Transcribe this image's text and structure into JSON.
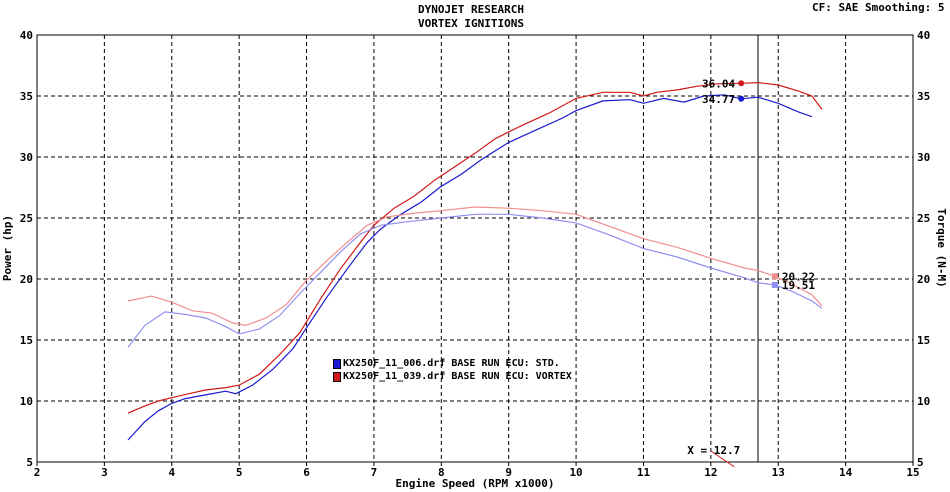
{
  "header": {
    "title_line1": "DYNOJET RESEARCH",
    "title_line2": "VORTEX IGNITIONS",
    "settings": "CF: SAE  Smoothing: 5"
  },
  "legend": [
    {
      "label": "KX250F_11_006.drf BASE RUN ECU: STD.",
      "color": "#1a1ad0"
    },
    {
      "label": "KX250F_11_039.drf BASE RUN ECU: VORTEX",
      "color": "#d01a1a"
    }
  ],
  "cursor": {
    "label": "X = 12.7",
    "x": 12.7
  },
  "chart_data": {
    "type": "line",
    "xlabel": "Engine Speed (RPM x1000)",
    "ylabel_left": "Power (hp)",
    "ylabel_right": "Torque (N-M)",
    "xlim": [
      2,
      15
    ],
    "ylim": [
      5,
      40
    ],
    "xticks": [
      2,
      3,
      4,
      5,
      6,
      7,
      8,
      9,
      10,
      11,
      12,
      13,
      14,
      15
    ],
    "yticks": [
      5,
      10,
      15,
      20,
      25,
      30,
      35,
      40
    ],
    "grid": true,
    "colors": {
      "std_power": "#1a1ad0",
      "vortex_power": "#d01a1a",
      "std_torque": "#8f8ff0",
      "vortex_torque": "#f08f8f"
    },
    "series": [
      {
        "name": "KX250F_11_006.drf BASE RUN ECU: STD.",
        "measure": "power",
        "color_key": "std_power",
        "points": [
          [
            3.35,
            6.8
          ],
          [
            3.6,
            8.3
          ],
          [
            3.8,
            9.2
          ],
          [
            4.0,
            9.8
          ],
          [
            4.2,
            10.2
          ],
          [
            4.5,
            10.5
          ],
          [
            4.8,
            10.8
          ],
          [
            4.95,
            10.6
          ],
          [
            5.2,
            11.3
          ],
          [
            5.5,
            12.6
          ],
          [
            5.8,
            14.3
          ],
          [
            6.0,
            16.0
          ],
          [
            6.3,
            18.5
          ],
          [
            6.6,
            20.8
          ],
          [
            6.9,
            23.0
          ],
          [
            7.1,
            24.1
          ],
          [
            7.4,
            25.3
          ],
          [
            7.7,
            26.3
          ],
          [
            8.0,
            27.6
          ],
          [
            8.3,
            28.6
          ],
          [
            8.6,
            29.8
          ],
          [
            9.0,
            31.2
          ],
          [
            9.4,
            32.2
          ],
          [
            9.8,
            33.2
          ],
          [
            10.0,
            33.8
          ],
          [
            10.4,
            34.6
          ],
          [
            10.8,
            34.7
          ],
          [
            11.0,
            34.4
          ],
          [
            11.3,
            34.8
          ],
          [
            11.6,
            34.5
          ],
          [
            11.9,
            35.0
          ],
          [
            12.2,
            35.1
          ],
          [
            12.45,
            34.77
          ],
          [
            12.7,
            34.9
          ],
          [
            13.0,
            34.4
          ],
          [
            13.3,
            33.7
          ],
          [
            13.5,
            33.3
          ]
        ]
      },
      {
        "name": "KX250F_11_039.drf BASE RUN ECU: VORTEX",
        "measure": "power",
        "color_key": "vortex_power",
        "points": [
          [
            3.35,
            9.0
          ],
          [
            3.6,
            9.6
          ],
          [
            3.8,
            10.0
          ],
          [
            4.1,
            10.4
          ],
          [
            4.5,
            10.9
          ],
          [
            4.8,
            11.1
          ],
          [
            5.0,
            11.3
          ],
          [
            5.3,
            12.2
          ],
          [
            5.6,
            13.8
          ],
          [
            5.9,
            15.6
          ],
          [
            6.2,
            18.3
          ],
          [
            6.5,
            20.8
          ],
          [
            6.8,
            23.0
          ],
          [
            7.0,
            24.4
          ],
          [
            7.3,
            25.8
          ],
          [
            7.6,
            26.8
          ],
          [
            7.9,
            28.1
          ],
          [
            8.2,
            29.2
          ],
          [
            8.5,
            30.3
          ],
          [
            8.8,
            31.5
          ],
          [
            9.2,
            32.6
          ],
          [
            9.6,
            33.6
          ],
          [
            10.0,
            34.8
          ],
          [
            10.4,
            35.3
          ],
          [
            10.8,
            35.3
          ],
          [
            11.0,
            35.0
          ],
          [
            11.2,
            35.3
          ],
          [
            11.5,
            35.5
          ],
          [
            11.8,
            35.8
          ],
          [
            12.1,
            36.0
          ],
          [
            12.45,
            36.04
          ],
          [
            12.7,
            36.1
          ],
          [
            13.0,
            35.9
          ],
          [
            13.3,
            35.4
          ],
          [
            13.5,
            35.0
          ],
          [
            13.65,
            33.9
          ]
        ]
      },
      {
        "name": "KX250F_11_006.drf BASE RUN ECU: STD.",
        "measure": "torque",
        "color_key": "std_torque",
        "points": [
          [
            3.35,
            14.4
          ],
          [
            3.6,
            16.2
          ],
          [
            3.9,
            17.3
          ],
          [
            4.2,
            17.1
          ],
          [
            4.5,
            16.8
          ],
          [
            4.8,
            16.1
          ],
          [
            5.0,
            15.5
          ],
          [
            5.3,
            15.9
          ],
          [
            5.6,
            17.0
          ],
          [
            5.9,
            18.8
          ],
          [
            6.2,
            20.5
          ],
          [
            6.5,
            22.2
          ],
          [
            6.8,
            23.7
          ],
          [
            7.1,
            24.4
          ],
          [
            7.5,
            24.7
          ],
          [
            8.0,
            25.0
          ],
          [
            8.5,
            25.3
          ],
          [
            9.0,
            25.3
          ],
          [
            9.5,
            25.0
          ],
          [
            10.0,
            24.6
          ],
          [
            10.5,
            23.6
          ],
          [
            11.0,
            22.5
          ],
          [
            11.5,
            21.8
          ],
          [
            12.0,
            20.9
          ],
          [
            12.5,
            20.1
          ],
          [
            12.7,
            19.7
          ],
          [
            12.95,
            19.51
          ],
          [
            13.2,
            19.0
          ],
          [
            13.5,
            18.2
          ],
          [
            13.65,
            17.6
          ]
        ]
      },
      {
        "name": "KX250F_11_039.drf BASE RUN ECU: VORTEX",
        "measure": "torque",
        "color_key": "vortex_torque",
        "points": [
          [
            3.35,
            18.2
          ],
          [
            3.7,
            18.6
          ],
          [
            4.0,
            18.1
          ],
          [
            4.3,
            17.4
          ],
          [
            4.6,
            17.2
          ],
          [
            4.9,
            16.4
          ],
          [
            5.1,
            16.2
          ],
          [
            5.4,
            16.8
          ],
          [
            5.7,
            17.9
          ],
          [
            6.0,
            19.9
          ],
          [
            6.3,
            21.5
          ],
          [
            6.6,
            23.0
          ],
          [
            6.9,
            24.4
          ],
          [
            7.2,
            25.1
          ],
          [
            7.6,
            25.4
          ],
          [
            8.0,
            25.6
          ],
          [
            8.5,
            25.9
          ],
          [
            9.0,
            25.8
          ],
          [
            9.5,
            25.6
          ],
          [
            10.0,
            25.3
          ],
          [
            10.5,
            24.3
          ],
          [
            11.0,
            23.3
          ],
          [
            11.5,
            22.6
          ],
          [
            12.0,
            21.7
          ],
          [
            12.5,
            20.9
          ],
          [
            12.7,
            20.7
          ],
          [
            12.95,
            20.22
          ],
          [
            13.2,
            19.6
          ],
          [
            13.5,
            18.7
          ],
          [
            13.65,
            17.8
          ]
        ]
      }
    ],
    "markers": [
      {
        "label": "36.04",
        "x": 12.45,
        "y": 36.04,
        "color_key": "vortex_power",
        "text_side": "left"
      },
      {
        "label": "34.77",
        "x": 12.45,
        "y": 34.77,
        "color_key": "std_power",
        "text_side": "left"
      },
      {
        "label": "20.22",
        "x": 12.95,
        "y": 20.22,
        "color_key": "vortex_torque",
        "text_side": "right"
      },
      {
        "label": "19.51",
        "x": 12.95,
        "y": 19.51,
        "color_key": "std_torque",
        "text_side": "right"
      }
    ]
  }
}
